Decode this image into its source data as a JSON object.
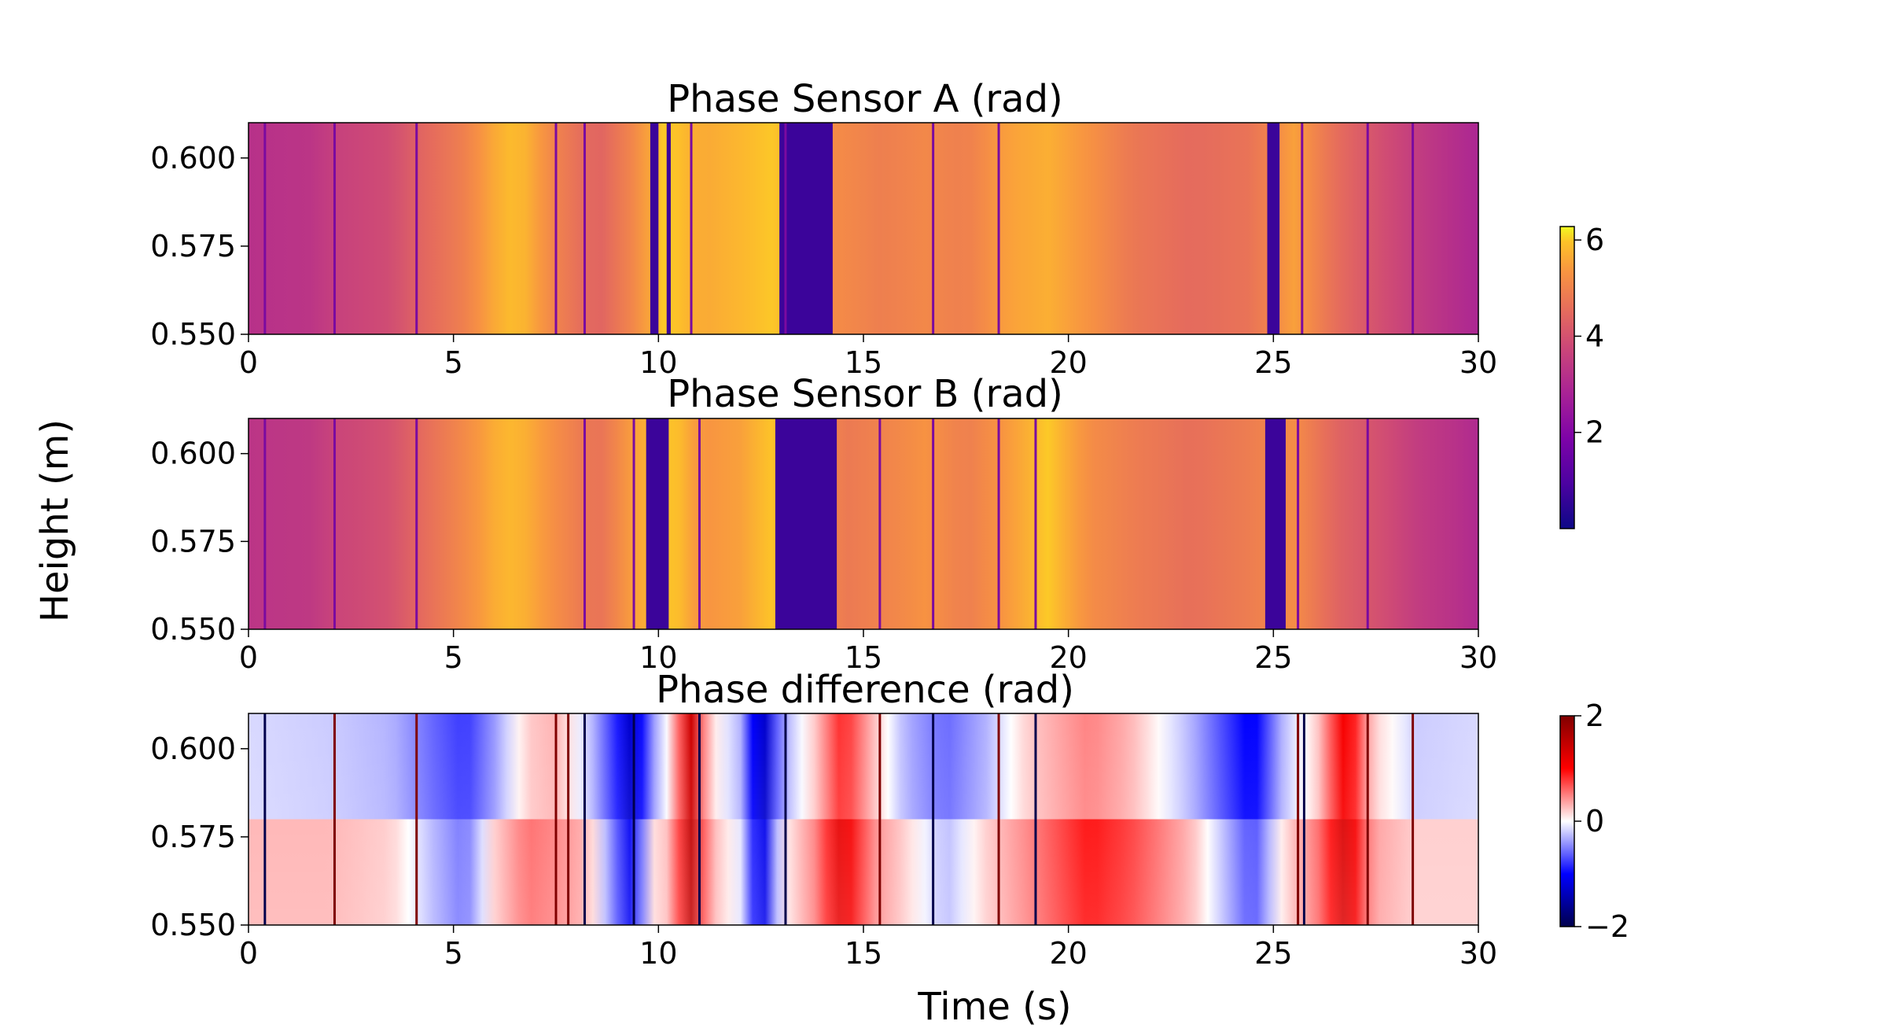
{
  "figure": {
    "ylabel": "Height (m)",
    "xlabel": "Time (s)"
  },
  "chart_data": [
    {
      "type": "heatmap",
      "title": "Phase Sensor A (rad)",
      "xlim": [
        0,
        30
      ],
      "ylim": [
        0.55,
        0.61
      ],
      "xticks": [
        0,
        5,
        10,
        15,
        20,
        25,
        30
      ],
      "xtick_labels": [
        "0",
        "5",
        "10",
        "15",
        "20",
        "25",
        "30"
      ],
      "yticks": [
        0.55,
        0.575,
        0.6
      ],
      "ytick_labels": [
        "0.550",
        "0.575",
        "0.600"
      ],
      "colormap": "plasma",
      "clim": [
        0,
        6.28
      ],
      "base_profile": [
        [
          0,
          3.2
        ],
        [
          1.5,
          3.3
        ],
        [
          2.1,
          3.6
        ],
        [
          3.5,
          3.9
        ],
        [
          4.2,
          4.4
        ],
        [
          5.2,
          4.9
        ],
        [
          6.2,
          5.8
        ],
        [
          6.6,
          5.9
        ],
        [
          7.5,
          5.0
        ],
        [
          8.5,
          4.3
        ],
        [
          9.5,
          5.2
        ],
        [
          10.2,
          6.1
        ],
        [
          11.0,
          5.6
        ],
        [
          12.0,
          5.8
        ],
        [
          12.8,
          6.0
        ],
        [
          14.2,
          5.2
        ],
        [
          15.5,
          4.9
        ],
        [
          16.5,
          5.1
        ],
        [
          17.5,
          4.9
        ],
        [
          18.5,
          5.5
        ],
        [
          19.5,
          5.7
        ],
        [
          20.5,
          5.3
        ],
        [
          21.5,
          4.8
        ],
        [
          23.0,
          4.5
        ],
        [
          24.5,
          4.7
        ],
        [
          25.5,
          5.5
        ],
        [
          26.5,
          4.6
        ],
        [
          27.5,
          4.0
        ],
        [
          28.5,
          3.5
        ],
        [
          29.5,
          3.1
        ],
        [
          30,
          2.9
        ]
      ],
      "dark_bands": [
        [
          9.8,
          10.0
        ],
        [
          10.2,
          10.3
        ],
        [
          12.95,
          14.25
        ],
        [
          24.85,
          25.15
        ]
      ],
      "thin_lines": [
        0.4,
        2.1,
        4.1,
        7.5,
        8.2,
        10.8,
        13.1,
        16.7,
        18.3,
        25.7,
        27.3,
        28.4
      ]
    },
    {
      "type": "heatmap",
      "title": "Phase Sensor B (rad)",
      "xlim": [
        0,
        30
      ],
      "ylim": [
        0.55,
        0.61
      ],
      "xticks": [
        0,
        5,
        10,
        15,
        20,
        25,
        30
      ],
      "xtick_labels": [
        "0",
        "5",
        "10",
        "15",
        "20",
        "25",
        "30"
      ],
      "yticks": [
        0.55,
        0.575,
        0.6
      ],
      "ytick_labels": [
        "0.550",
        "0.575",
        "0.600"
      ],
      "colormap": "plasma",
      "clim": [
        0,
        6.28
      ],
      "base_profile": [
        [
          0,
          3.3
        ],
        [
          1.5,
          3.4
        ],
        [
          2.1,
          3.7
        ],
        [
          3.5,
          4.0
        ],
        [
          4.2,
          4.5
        ],
        [
          5.2,
          5.1
        ],
        [
          6.2,
          5.8
        ],
        [
          6.6,
          5.8
        ],
        [
          7.5,
          5.2
        ],
        [
          8.5,
          4.6
        ],
        [
          9.4,
          5.5
        ],
        [
          10.3,
          6.1
        ],
        [
          11.0,
          5.3
        ],
        [
          12.0,
          5.5
        ],
        [
          12.8,
          6.0
        ],
        [
          14.5,
          4.8
        ],
        [
          15.5,
          5.0
        ],
        [
          16.5,
          5.3
        ],
        [
          17.5,
          4.9
        ],
        [
          18.5,
          5.4
        ],
        [
          19.5,
          6.0
        ],
        [
          20.5,
          5.2
        ],
        [
          21.5,
          4.9
        ],
        [
          23.0,
          4.6
        ],
        [
          24.5,
          4.9
        ],
        [
          25.5,
          5.2
        ],
        [
          26.5,
          4.4
        ],
        [
          27.5,
          4.0
        ],
        [
          28.5,
          3.5
        ],
        [
          29.5,
          3.2
        ],
        [
          30,
          3.0
        ]
      ],
      "dark_bands": [
        [
          9.7,
          10.25
        ],
        [
          12.85,
          14.35
        ],
        [
          24.8,
          25.3
        ]
      ],
      "thin_lines": [
        0.4,
        2.1,
        4.1,
        8.2,
        9.4,
        11.0,
        15.4,
        16.7,
        18.3,
        19.2,
        25.6,
        27.3
      ]
    },
    {
      "type": "heatmap",
      "title": "Phase difference (rad)",
      "xlim": [
        0,
        30
      ],
      "ylim": [
        0.55,
        0.61
      ],
      "xticks": [
        0,
        5,
        10,
        15,
        20,
        25,
        30
      ],
      "xtick_labels": [
        "0",
        "5",
        "10",
        "15",
        "20",
        "25",
        "30"
      ],
      "yticks": [
        0.55,
        0.575,
        0.6
      ],
      "ytick_labels": [
        "0.550",
        "0.575",
        "0.600"
      ],
      "colormap": "seismic",
      "clim": [
        -2,
        2
      ],
      "top_profile": [
        [
          0,
          -0.15
        ],
        [
          2,
          -0.2
        ],
        [
          3.5,
          -0.3
        ],
        [
          4.5,
          -0.6
        ],
        [
          5.3,
          -0.8
        ],
        [
          6.0,
          -0.4
        ],
        [
          6.8,
          0.2
        ],
        [
          7.5,
          0.3
        ],
        [
          8.3,
          -0.2
        ],
        [
          9.0,
          -0.9
        ],
        [
          9.4,
          -1.4
        ],
        [
          9.8,
          -0.5
        ],
        [
          10.3,
          0.1
        ],
        [
          10.8,
          1.4
        ],
        [
          11.2,
          0.2
        ],
        [
          12.0,
          -0.3
        ],
        [
          12.5,
          -1.5
        ],
        [
          13.0,
          -0.4
        ],
        [
          13.8,
          0.2
        ],
        [
          14.5,
          0.9
        ],
        [
          15.2,
          0.3
        ],
        [
          16.0,
          -0.3
        ],
        [
          17.0,
          -0.6
        ],
        [
          18.0,
          -0.3
        ],
        [
          19.0,
          0.2
        ],
        [
          20.5,
          0.5
        ],
        [
          21.5,
          0.3
        ],
        [
          23.0,
          -0.3
        ],
        [
          24.5,
          -1.1
        ],
        [
          25.3,
          -0.2
        ],
        [
          26.0,
          0.1
        ],
        [
          26.8,
          1.2
        ],
        [
          27.4,
          0.2
        ],
        [
          28.5,
          -0.2
        ],
        [
          30,
          -0.15
        ]
      ],
      "bottom_profile": [
        [
          0,
          0.3
        ],
        [
          2,
          0.3
        ],
        [
          3.5,
          0.2
        ],
        [
          4.5,
          -0.3
        ],
        [
          5.3,
          -0.6
        ],
        [
          6.0,
          0.2
        ],
        [
          6.8,
          0.6
        ],
        [
          7.5,
          0.5
        ],
        [
          8.3,
          0.3
        ],
        [
          9.0,
          -0.7
        ],
        [
          9.4,
          -1.2
        ],
        [
          9.8,
          0.1
        ],
        [
          10.3,
          0.3
        ],
        [
          10.8,
          1.5
        ],
        [
          11.2,
          0.4
        ],
        [
          12.0,
          -0.1
        ],
        [
          12.5,
          -1.4
        ],
        [
          13.0,
          0.0
        ],
        [
          13.8,
          0.5
        ],
        [
          14.5,
          1.3
        ],
        [
          15.2,
          0.5
        ],
        [
          16.0,
          0.2
        ],
        [
          17.0,
          -0.3
        ],
        [
          18.0,
          0.2
        ],
        [
          19.0,
          0.5
        ],
        [
          20.5,
          1.0
        ],
        [
          21.5,
          0.8
        ],
        [
          23.0,
          0.3
        ],
        [
          24.5,
          -0.8
        ],
        [
          25.3,
          0.2
        ],
        [
          26.0,
          0.5
        ],
        [
          26.8,
          1.4
        ],
        [
          27.4,
          0.4
        ],
        [
          28.5,
          0.2
        ],
        [
          30,
          0.2
        ]
      ],
      "thin_lines": [
        [
          0.4,
          -2
        ],
        [
          2.1,
          2
        ],
        [
          4.1,
          2
        ],
        [
          7.5,
          2
        ],
        [
          7.8,
          2
        ],
        [
          8.2,
          -2
        ],
        [
          9.4,
          -2
        ],
        [
          11.0,
          -2
        ],
        [
          13.1,
          -2
        ],
        [
          15.4,
          2
        ],
        [
          16.7,
          -2
        ],
        [
          18.3,
          2
        ],
        [
          19.2,
          -2
        ],
        [
          25.6,
          2
        ],
        [
          25.75,
          -2
        ],
        [
          27.3,
          2
        ],
        [
          28.4,
          2
        ]
      ]
    }
  ],
  "colorbars": [
    {
      "name": "phase",
      "colormap": "plasma",
      "min": 0,
      "max": 6.28,
      "ticks": [
        2,
        4,
        6
      ],
      "tick_labels": [
        "2",
        "4",
        "6"
      ]
    },
    {
      "name": "difference",
      "colormap": "seismic",
      "min": -2,
      "max": 2,
      "ticks": [
        -2,
        0,
        2
      ],
      "tick_labels": [
        "−2",
        "0",
        "2"
      ]
    }
  ]
}
